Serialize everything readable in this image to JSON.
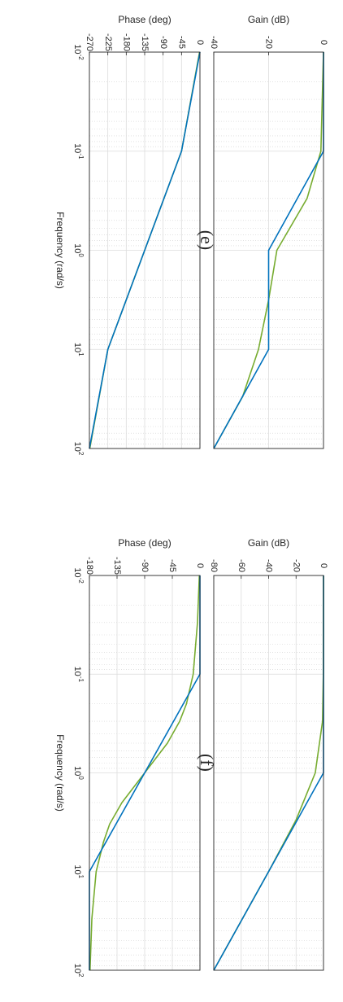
{
  "chart_data": [
    {
      "type": "line",
      "panel_label": "(e)",
      "xlabel": "Frequency (rad/s)",
      "x_scale": "log",
      "x_range": [
        0.01,
        100
      ],
      "x_tick_labels": [
        "10^-2",
        "10^-1",
        "10^0",
        "10^1",
        "10^2"
      ],
      "grid": true,
      "subplots": [
        {
          "ylabel": "Gain (dB)",
          "ylim": [
            -40,
            0
          ],
          "y_tick_labels": [
            "-40",
            "-20",
            "0"
          ],
          "series": [
            {
              "color": "#77ac30",
              "x": [
                0.01,
                0.1,
                0.3,
                1,
                3.16,
                10,
                30,
                100
              ],
              "y": [
                0,
                -0.95,
                -6,
                -17,
                -20,
                -23.7,
                -29.5,
                -40
              ]
            },
            {
              "color": "#0072bd",
              "x": [
                0.01,
                0.1,
                1,
                10,
                100
              ],
              "y": [
                0,
                0,
                -20,
                -20,
                -40
              ]
            }
          ]
        },
        {
          "ylabel": "Phase (deg)",
          "ylim": [
            -270,
            0
          ],
          "y_tick_labels": [
            "-270",
            "-225",
            "-180",
            "-135",
            "-90",
            "-45",
            "0"
          ],
          "series": [
            {
              "color": "#77ac30",
              "x": [
                0.01,
                0.1,
                1,
                10,
                100
              ],
              "y": [
                -1,
                -45,
                -135,
                -225,
                -269
              ]
            },
            {
              "color": "#0072bd",
              "x": [
                0.01,
                0.1,
                1,
                10,
                100
              ],
              "y": [
                0,
                -45,
                -135,
                -225,
                -270
              ]
            }
          ]
        }
      ]
    },
    {
      "type": "line",
      "panel_label": "(f)",
      "xlabel": "Frequency (rad/s)",
      "x_scale": "log",
      "x_range": [
        0.01,
        100
      ],
      "x_tick_labels": [
        "10^-2",
        "10^-1",
        "10^0",
        "10^1",
        "10^2"
      ],
      "grid": true,
      "subplots": [
        {
          "ylabel": "Gain (dB)",
          "ylim": [
            -80,
            0
          ],
          "y_tick_labels": [
            "-80",
            "-60",
            "-40",
            "-20",
            "0"
          ],
          "series": [
            {
              "color": "#77ac30",
              "x": [
                0.01,
                0.1,
                0.3,
                1,
                3,
                10,
                100
              ],
              "y": [
                0,
                -0.1,
                -0.7,
                -6,
                -20,
                -40,
                -80
              ]
            },
            {
              "color": "#0072bd",
              "x": [
                0.01,
                1,
                100
              ],
              "y": [
                0,
                0,
                -80
              ]
            }
          ]
        },
        {
          "ylabel": "Phase (deg)",
          "ylim": [
            -180,
            0
          ],
          "y_tick_labels": [
            "-180",
            "-135",
            "-90",
            "-45",
            "0"
          ],
          "series": [
            {
              "color": "#77ac30",
              "x": [
                0.01,
                0.03,
                0.1,
                0.2,
                0.3,
                0.5,
                1,
                2,
                3.3,
                5,
                10,
                30,
                100
              ],
              "y": [
                -1,
                -4,
                -11,
                -22,
                -33,
                -53,
                -90,
                -127,
                -147,
                -157,
                -169,
                -176,
                -179
              ]
            },
            {
              "color": "#0072bd",
              "x": [
                0.01,
                0.1,
                10,
                100
              ],
              "y": [
                0,
                0,
                -180,
                -180
              ]
            }
          ]
        }
      ]
    }
  ]
}
